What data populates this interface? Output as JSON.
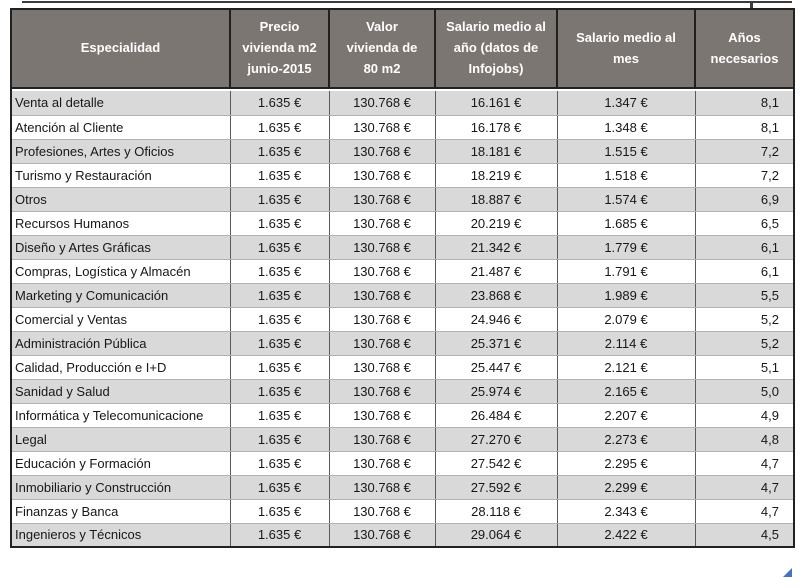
{
  "chart_data": {
    "type": "table",
    "title": "",
    "columns": [
      "Especialidad",
      "Precio vivienda m2 junio-2015",
      "Valor vivienda de 80 m2",
      "Salario medio al año (datos de Infojobs)",
      "Salario medio al mes",
      "Años necesarios"
    ],
    "rows": [
      [
        "Venta al detalle",
        "1.635 €",
        "130.768 €",
        "16.161 €",
        "1.347 €",
        "8,1"
      ],
      [
        "Atención al Cliente",
        "1.635 €",
        "130.768 €",
        "16.178 €",
        "1.348 €",
        "8,1"
      ],
      [
        "Profesiones, Artes y Oficios",
        "1.635 €",
        "130.768 €",
        "18.181 €",
        "1.515 €",
        "7,2"
      ],
      [
        "Turismo y Restauración",
        "1.635 €",
        "130.768 €",
        "18.219 €",
        "1.518 €",
        "7,2"
      ],
      [
        "Otros",
        "1.635 €",
        "130.768 €",
        "18.887 €",
        "1.574 €",
        "6,9"
      ],
      [
        "Recursos Humanos",
        "1.635 €",
        "130.768 €",
        "20.219 €",
        "1.685 €",
        "6,5"
      ],
      [
        "Diseño y Artes Gráficas",
        "1.635 €",
        "130.768 €",
        "21.342 €",
        "1.779 €",
        "6,1"
      ],
      [
        "Compras, Logística y Almacén",
        "1.635 €",
        "130.768 €",
        "21.487 €",
        "1.791 €",
        "6,1"
      ],
      [
        "Marketing y Comunicación",
        "1.635 €",
        "130.768 €",
        "23.868 €",
        "1.989 €",
        "5,5"
      ],
      [
        "Comercial y Ventas",
        "1.635 €",
        "130.768 €",
        "24.946 €",
        "2.079 €",
        "5,2"
      ],
      [
        "Administración Pública",
        "1.635 €",
        "130.768 €",
        "25.371 €",
        "2.114 €",
        "5,2"
      ],
      [
        "Calidad, Producción e I+D",
        "1.635 €",
        "130.768 €",
        "25.447 €",
        "2.121 €",
        "5,1"
      ],
      [
        "Sanidad y Salud",
        "1.635 €",
        "130.768 €",
        "25.974 €",
        "2.165 €",
        "5,0"
      ],
      [
        "Informática y Telecomunicacione",
        "1.635 €",
        "130.768 €",
        "26.484 €",
        "2.207 €",
        "4,9"
      ],
      [
        "Legal",
        "1.635 €",
        "130.768 €",
        "27.270 €",
        "2.273 €",
        "4,8"
      ],
      [
        "Educación y Formación",
        "1.635 €",
        "130.768 €",
        "27.542 €",
        "2.295 €",
        "4,7"
      ],
      [
        "Inmobiliario y Construcción",
        "1.635 €",
        "130.768 €",
        "27.592 €",
        "2.299 €",
        "4,7"
      ],
      [
        "Finanzas y Banca",
        "1.635 €",
        "130.768 €",
        "28.118 €",
        "2.343 €",
        "4,7"
      ],
      [
        "Ingenieros y Técnicos",
        "1.635 €",
        "130.768 €",
        "29.064 €",
        "2.422 €",
        "4,5"
      ]
    ]
  },
  "table": {
    "header": [
      {
        "label": "Especialidad"
      },
      {
        "label": "Precio\nvivienda m2\njunio-2015"
      },
      {
        "label": "Valor\nvivienda de\n80 m2"
      },
      {
        "label": "Salario medio al\naño (datos de\nInfojobs)"
      },
      {
        "label": "Salario medio al\nmes"
      },
      {
        "label": "Años\nnecesarios"
      }
    ],
    "field_names": [
      "especialidad",
      "precio-vivienda-m2",
      "valor-vivienda-80m2",
      "salario-medio-anual",
      "salario-medio-mensual",
      "anios-necesarios"
    ]
  },
  "colors": {
    "header_bg": "#7c7672",
    "header_text": "#ffffff",
    "row_stripe": "#d9d9d9",
    "row_plain": "#ffffff",
    "outer_border": "#212121",
    "column_border": "#5a5a5a",
    "row_border": "#b2b2b2",
    "corner_marker": "#4472c4"
  }
}
